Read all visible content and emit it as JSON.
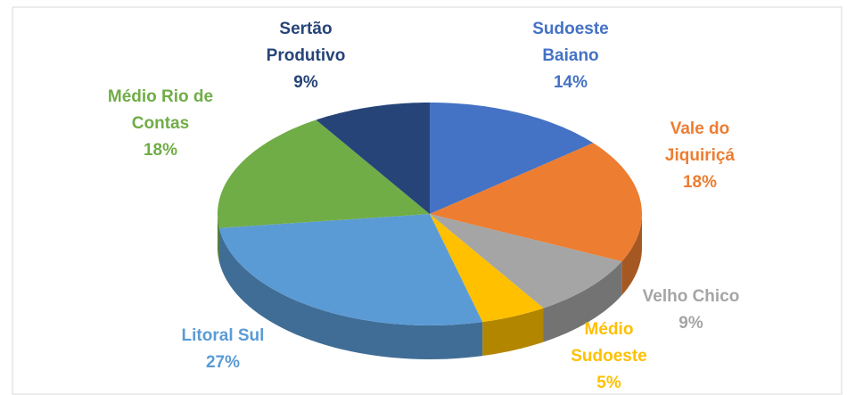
{
  "chart_data": {
    "type": "pie3d",
    "categories": [
      "Sudoeste Baiano",
      "Vale do Jiquiriçá",
      "Velho Chico",
      "Médio Sudoeste",
      "Litoral Sul",
      "Médio Rio de Contas",
      "Sertão Produtivo"
    ],
    "values": [
      14,
      18,
      9,
      5,
      27,
      18,
      9
    ],
    "value_labels": [
      "14%",
      "18%",
      "9%",
      "5%",
      "27%",
      "18%",
      "9%"
    ],
    "colors": [
      "#4472c4",
      "#ed7d31",
      "#a5a5a5",
      "#ffc000",
      "#5b9bd5",
      "#70ad47",
      "#264478"
    ]
  }
}
